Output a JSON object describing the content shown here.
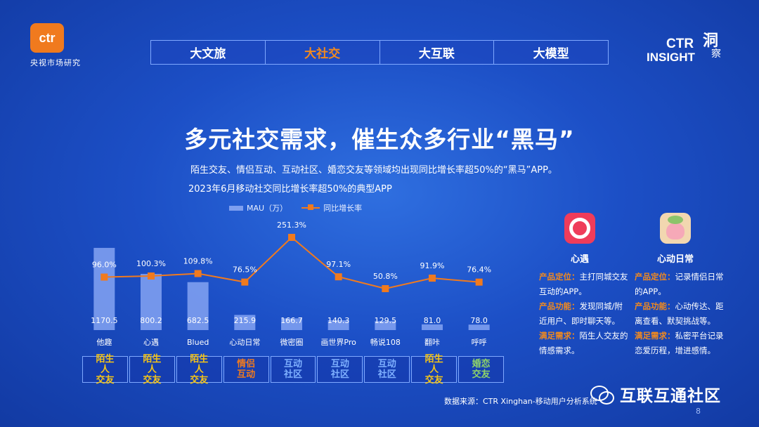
{
  "header": {
    "logo_text": "ctr",
    "logo_sub": "央视市场研究",
    "tabs": [
      "大文旅",
      "大社交",
      "大互联",
      "大模型"
    ],
    "active_tab": 1,
    "insight": {
      "ctr": "CTR",
      "insight": "INSIGHT",
      "cn1": "洞",
      "cn2": "察"
    }
  },
  "main": {
    "title": "多元社交需求，催生众多行业“黑马”",
    "subtitle": "陌生交友、情侣互动、互动社区、婚恋交友等领域均出现同比增长率超50%的“黑马”APP。"
  },
  "chart_data": {
    "type": "bar",
    "title": "2023年6月移动社交同比增长率超50%的典型APP",
    "categories": [
      "他趣",
      "心遇",
      "Blued",
      "心动日常",
      "微密圈",
      "画世界Pro",
      "畅说108",
      "翻咔",
      "呼呼"
    ],
    "series": [
      {
        "name": "MAU（万）",
        "type": "bar",
        "values": [
          1170.5,
          800.2,
          682.5,
          215.9,
          166.7,
          140.3,
          129.5,
          81.0,
          78.0
        ],
        "labels": [
          "1170.5",
          "800.2",
          "682.5",
          "215.9",
          "166.7",
          "140.3",
          "129.5",
          "81.0",
          "78.0"
        ]
      },
      {
        "name": "同比增长率",
        "type": "line",
        "values": [
          96.0,
          100.3,
          109.8,
          76.5,
          251.3,
          97.1,
          50.8,
          91.9,
          76.4
        ],
        "labels": [
          "96.0%",
          "100.3%",
          "109.8%",
          "76.5%",
          "251.3%",
          "97.1%",
          "50.8%",
          "91.9%",
          "76.4%"
        ]
      }
    ],
    "segments": [
      {
        "label": "陌生人\n交友",
        "color": "#f5c518"
      },
      {
        "label": "陌生人\n交友",
        "color": "#f5c518"
      },
      {
        "label": "陌生人\n交友",
        "color": "#f5c518"
      },
      {
        "label": "情侣\n互动",
        "color": "#f07a1e"
      },
      {
        "label": "互动\n社区",
        "color": "#7eb0ff"
      },
      {
        "label": "互动\n社区",
        "color": "#7eb0ff"
      },
      {
        "label": "互动\n社区",
        "color": "#7eb0ff"
      },
      {
        "label": "陌生人\n交友",
        "color": "#f5c518"
      },
      {
        "label": "婚恋\n交友",
        "color": "#8fd468"
      }
    ],
    "colors": {
      "bar": "#7e9ff0",
      "line": "#f07a1e"
    },
    "legend": "top"
  },
  "apps": [
    {
      "name": "心遇",
      "icon": "xinyu-app-icon",
      "desc": [
        {
          "k": "产品定位：",
          "v": "主打同城交友互动的APP。"
        },
        {
          "k": "产品功能：",
          "v": "发现同城/附近用户、即时聊天等。"
        },
        {
          "k": "满足需求：",
          "v": "陌生人交友的情感需求。"
        }
      ]
    },
    {
      "name": "心动日常",
      "icon": "xindong-app-icon",
      "desc": [
        {
          "k": "产品定位：",
          "v": "记录情侣日常的APP。"
        },
        {
          "k": "产品功能：",
          "v": "心动传达、距离查看、默契挑战等。"
        },
        {
          "k": "满足需求：",
          "v": "私密平台记录恋爱历程，增进感情。"
        }
      ]
    }
  ],
  "footer": {
    "source": "数据来源：CTR Xinghan-移动用户分析系统",
    "watermark": "互联互通社区",
    "page": "8"
  }
}
